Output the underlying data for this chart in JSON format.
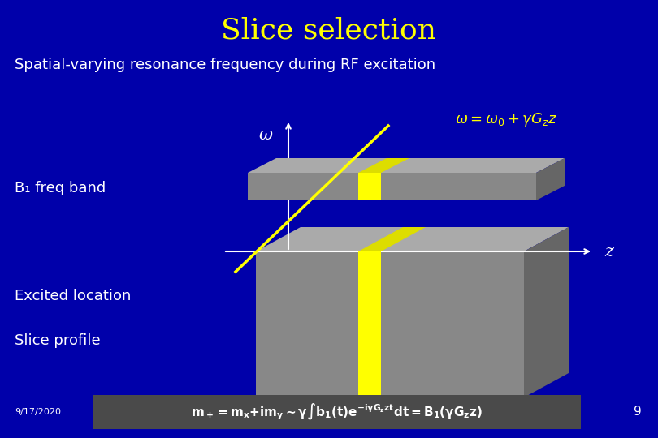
{
  "title": "Slice selection",
  "title_color": "#FFFF00",
  "title_fontsize": 26,
  "bg_color": "#0000aa",
  "subtitle": "Spatial-varying resonance frequency during RF excitation",
  "subtitle_color": "#ffffff",
  "subtitle_fontsize": 13,
  "label_omega": "ω",
  "label_z": "z",
  "label_b1": "B₁ freq band",
  "label_excited": "Excited location",
  "label_slice": "Slice profile",
  "label_date": "9/17/2020",
  "label_num": "9",
  "text_color": "#ffffff",
  "yellow_color": "#FFFF00",
  "gray_front": "#888888",
  "gray_top": "#aaaaaa",
  "gray_right": "#666666",
  "eq_bg_color": "#4a4a4a",
  "band_gray": "#888888"
}
